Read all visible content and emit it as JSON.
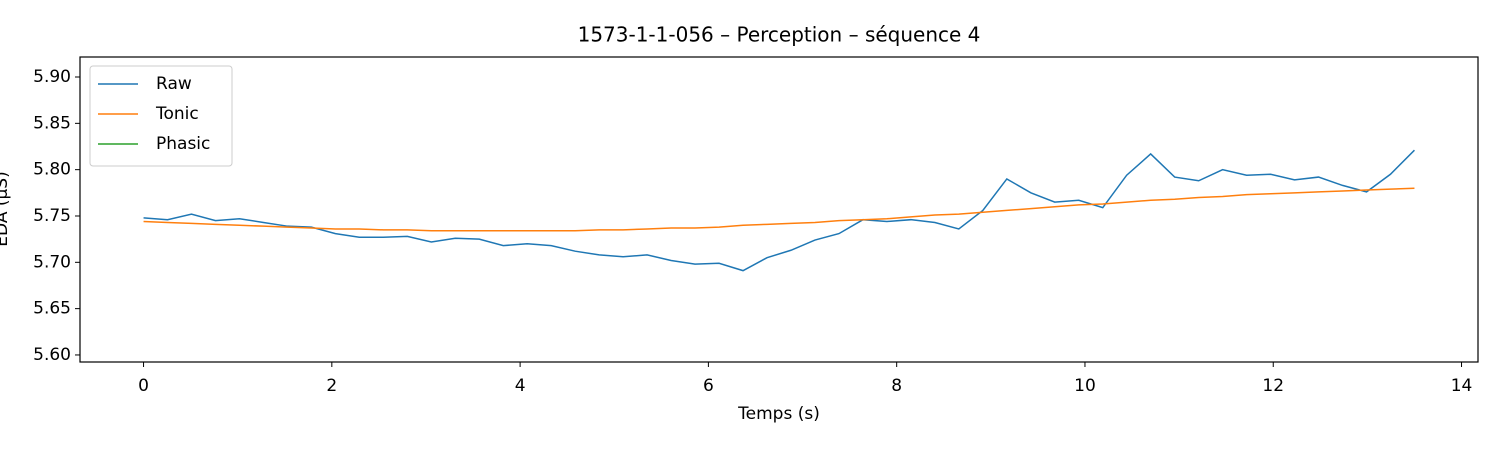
{
  "chart_data": {
    "type": "line",
    "title": "1573-1-1-056 – Perception – séquence 4",
    "x_label": "Temps (s)",
    "y_label": "EDA (µS)",
    "x": [
      0,
      0.255,
      0.509,
      0.764,
      1.019,
      1.274,
      1.528,
      1.783,
      2.038,
      2.292,
      2.547,
      2.802,
      3.057,
      3.311,
      3.566,
      3.821,
      4.075,
      4.33,
      4.585,
      4.84,
      5.094,
      5.349,
      5.604,
      5.858,
      6.113,
      6.368,
      6.623,
      6.877,
      7.132,
      7.387,
      7.642,
      7.896,
      8.151,
      8.406,
      8.66,
      8.915,
      9.17,
      9.425,
      9.679,
      9.934,
      10.189,
      10.443,
      10.698,
      10.953,
      11.208,
      11.462,
      11.717,
      11.972,
      12.226,
      12.481,
      12.736,
      12.991,
      13.245,
      13.5
    ],
    "series": [
      {
        "name": "Raw",
        "color": "#1f77b4",
        "values": [
          5.748,
          5.746,
          5.752,
          5.745,
          5.747,
          5.743,
          5.739,
          5.738,
          5.731,
          5.727,
          5.727,
          5.728,
          5.722,
          5.726,
          5.725,
          5.718,
          5.72,
          5.718,
          5.712,
          5.708,
          5.706,
          5.708,
          5.702,
          5.698,
          5.699,
          5.691,
          5.705,
          5.713,
          5.724,
          5.731,
          5.746,
          5.744,
          5.746,
          5.743,
          5.736,
          5.756,
          5.79,
          5.775,
          5.765,
          5.767,
          5.759,
          5.794,
          5.817,
          5.792,
          5.788,
          5.8,
          5.794,
          5.795,
          5.789,
          5.792,
          5.783,
          5.776,
          5.795,
          5.821
        ]
      },
      {
        "name": "Tonic",
        "color": "#ff7f0e",
        "values": [
          5.744,
          5.743,
          5.742,
          5.741,
          5.74,
          5.739,
          5.738,
          5.737,
          5.736,
          5.736,
          5.735,
          5.735,
          5.734,
          5.734,
          5.734,
          5.734,
          5.734,
          5.734,
          5.734,
          5.735,
          5.735,
          5.736,
          5.737,
          5.737,
          5.738,
          5.74,
          5.741,
          5.742,
          5.743,
          5.745,
          5.746,
          5.747,
          5.749,
          5.751,
          5.752,
          5.754,
          5.756,
          5.758,
          5.76,
          5.762,
          5.763,
          5.765,
          5.767,
          5.768,
          5.77,
          5.771,
          5.773,
          5.774,
          5.775,
          5.776,
          5.777,
          5.778,
          5.779,
          5.78
        ]
      },
      {
        "name": "Phasic",
        "color": "#2ca02c",
        "values": [
          null,
          null,
          null,
          null,
          null,
          null,
          null,
          null,
          null,
          null,
          null,
          null,
          null,
          null,
          null,
          null,
          null,
          null,
          null,
          null,
          null,
          null,
          null,
          null,
          null,
          null,
          null,
          null,
          null,
          null,
          null,
          null,
          null,
          null,
          null,
          null,
          null,
          null,
          null,
          null,
          null,
          null,
          null,
          null,
          null,
          null,
          null,
          null,
          null,
          null,
          null,
          null,
          null,
          null
        ]
      }
    ],
    "xlim": [
      -0.675,
      14.175
    ],
    "xticks": [
      0,
      2,
      4,
      6,
      8,
      10,
      12,
      14
    ],
    "ylim": [
      5.5924,
      5.9216
    ],
    "yticks": [
      {
        "value": 5.6,
        "label": "5.60"
      },
      5.65,
      {
        "value": 5.7,
        "label": "5.70"
      },
      5.75,
      {
        "value": 5.8,
        "label": "5.80"
      },
      5.85,
      {
        "value": 5.9,
        "label": "5.90"
      }
    ],
    "legend": "upper left"
  }
}
